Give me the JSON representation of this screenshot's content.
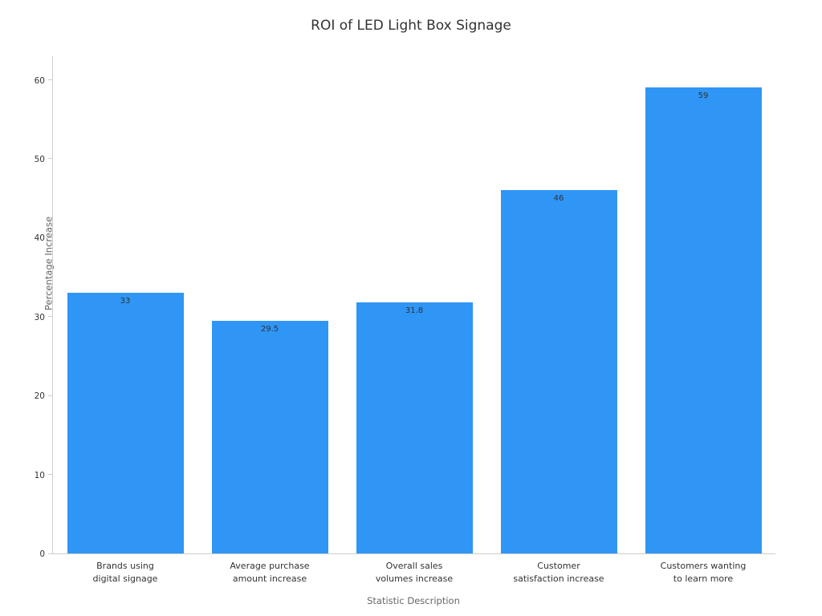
{
  "title": "ROI of LED Light Box Signage",
  "chart_data": {
    "type": "bar",
    "title": "ROI of LED Light Box Signage",
    "xlabel": "Statistic Description",
    "ylabel": "Percentage Increase",
    "categories": [
      "Brands using\ndigital signage",
      "Average purchase\namount increase",
      "Overall sales\nvolumes increase",
      "Customer\nsatisfaction increase",
      "Customers wanting\nto learn more"
    ],
    "values": [
      33,
      29.5,
      31.8,
      46,
      59
    ],
    "value_labels": [
      "33",
      "29.5",
      "31.8",
      "46",
      "59"
    ],
    "yticks": [
      0,
      10,
      20,
      30,
      40,
      50,
      60
    ],
    "ylim": [
      0,
      63
    ],
    "grid": false,
    "legend": false,
    "bar_color": "#2f96f5",
    "value_label_color": "#2f3338",
    "axis_color": "#cccccc"
  }
}
